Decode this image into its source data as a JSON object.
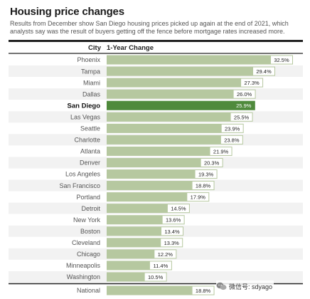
{
  "chart_data": {
    "type": "bar",
    "title": "Housing price changes",
    "subtitle": "Results from December show San Diego housing prices picked up again at the end of 2021, which analysts say was the result of buyers getting off the fence before mortgage rates increased more.",
    "column_headers": {
      "category": "City",
      "value": "1-Year Change"
    },
    "categories": [
      "Phoenix",
      "Tampa",
      "Miami",
      "Dallas",
      "San Diego",
      "Las Vegas",
      "Seattle",
      "Charlotte",
      "Atlanta",
      "Denver",
      "Los Angeles",
      "San Francisco",
      "Portland",
      "Detroit",
      "New York",
      "Boston",
      "Cleveland",
      "Chicago",
      "Minneapolis",
      "Washington",
      "National"
    ],
    "values": [
      32.5,
      29.4,
      27.3,
      26.0,
      25.9,
      25.5,
      23.9,
      23.8,
      21.9,
      20.3,
      19.3,
      18.8,
      17.9,
      14.5,
      13.6,
      13.4,
      13.3,
      12.2,
      11.4,
      10.5,
      18.8
    ],
    "value_labels": [
      "32.5%",
      "29.4%",
      "27.3%",
      "26.0%",
      "25.9%",
      "25.5%",
      "23.9%",
      "23.8%",
      "21.9%",
      "20.3%",
      "19.3%",
      "18.8%",
      "17.9%",
      "14.5%",
      "13.6%",
      "13.4%",
      "13.3%",
      "12.2%",
      "11.4%",
      "10.5%",
      "18.8%"
    ],
    "highlight": "San Diego",
    "summary_row": "National",
    "xlim": [
      0,
      32.5
    ],
    "grid": false,
    "legend": "none",
    "colors": {
      "bar": "#b6c8a0",
      "highlight_bar": "#4f8a3c",
      "row_even": "#ffffff",
      "row_odd": "#f2f2f2",
      "rule": "#222222",
      "label_bg": "#ffffff",
      "highlight_label_bg": "#4f8a3c"
    }
  },
  "watermark": {
    "text": "微信号: sdyago",
    "icon": "wechat-icon"
  }
}
